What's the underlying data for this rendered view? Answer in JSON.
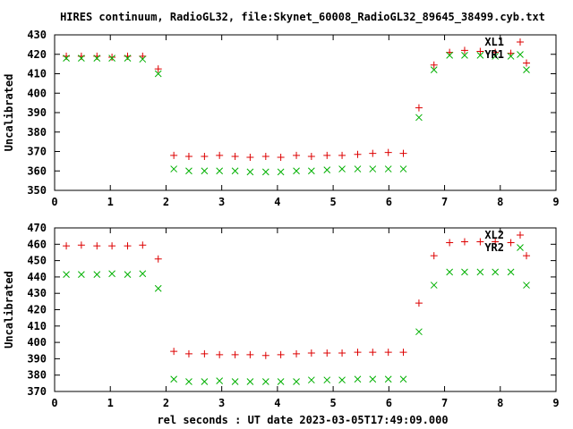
{
  "title": "HIRES continuum, RadioGL32, file:Skynet_60008_RadioGL32_89645_38499.cyb.txt",
  "xlabel": "rel seconds : UT date 2023-03-05T17:49:09.000",
  "chart_data": [
    {
      "type": "scatter",
      "ylabel": "Uncalibrated",
      "xlim": [
        0,
        9
      ],
      "ylim": [
        350,
        430
      ],
      "x_ticks": [
        0,
        1,
        2,
        3,
        4,
        5,
        6,
        7,
        8,
        9
      ],
      "y_ticks": [
        350,
        360,
        370,
        380,
        390,
        400,
        410,
        420,
        430
      ],
      "legend_position": "top-right",
      "grid": false,
      "series": [
        {
          "name": "XL1",
          "marker": "plus",
          "color": "#dd0000",
          "x": [
            0.21,
            0.48,
            0.76,
            1.03,
            1.31,
            1.58,
            1.86,
            2.14,
            2.41,
            2.69,
            2.96,
            3.24,
            3.51,
            3.79,
            4.06,
            4.34,
            4.61,
            4.89,
            5.16,
            5.44,
            5.71,
            5.99,
            6.26,
            6.54,
            6.81,
            7.09,
            7.36,
            7.64,
            7.91,
            8.19,
            8.47
          ],
          "y": [
            419,
            419,
            419,
            418.5,
            419,
            419,
            412.5,
            368,
            367.5,
            367.5,
            368,
            367.5,
            367,
            367.5,
            367,
            368,
            367.5,
            368,
            368,
            368.5,
            369,
            369.5,
            369,
            392.5,
            414.5,
            421,
            422,
            421.5,
            421,
            420.5,
            415.5
          ]
        },
        {
          "name": "YR1",
          "marker": "x",
          "color": "#00b000",
          "x": [
            0.21,
            0.48,
            0.76,
            1.03,
            1.31,
            1.58,
            1.86,
            2.14,
            2.41,
            2.69,
            2.96,
            3.24,
            3.51,
            3.79,
            4.06,
            4.34,
            4.61,
            4.89,
            5.16,
            5.44,
            5.71,
            5.99,
            6.26,
            6.54,
            6.81,
            7.09,
            7.36,
            7.64,
            7.91,
            8.19,
            8.47
          ],
          "y": [
            418,
            418,
            418,
            418,
            418,
            417.5,
            410,
            361,
            360,
            360,
            360,
            360,
            359.5,
            359.5,
            359.5,
            360,
            360,
            360.5,
            361,
            361,
            361,
            361,
            361,
            387.5,
            412,
            419.5,
            419.5,
            419.5,
            419,
            419,
            412
          ]
        }
      ]
    },
    {
      "type": "scatter",
      "ylabel": "Uncalibrated",
      "xlim": [
        0,
        9
      ],
      "ylim": [
        370,
        470
      ],
      "x_ticks": [
        0,
        1,
        2,
        3,
        4,
        5,
        6,
        7,
        8,
        9
      ],
      "y_ticks": [
        370,
        380,
        390,
        400,
        410,
        420,
        430,
        440,
        450,
        460,
        470
      ],
      "legend_position": "top-right",
      "grid": false,
      "series": [
        {
          "name": "XL2",
          "marker": "plus",
          "color": "#dd0000",
          "x": [
            0.21,
            0.48,
            0.76,
            1.03,
            1.31,
            1.58,
            1.86,
            2.14,
            2.41,
            2.69,
            2.96,
            3.24,
            3.51,
            3.79,
            4.06,
            4.34,
            4.61,
            4.89,
            5.16,
            5.44,
            5.71,
            5.99,
            6.26,
            6.54,
            6.81,
            7.09,
            7.36,
            7.64,
            7.91,
            8.19,
            8.47
          ],
          "y": [
            459,
            459.5,
            459,
            459,
            459,
            459.5,
            451,
            394.5,
            393,
            393,
            392.5,
            392.5,
            392.5,
            392,
            392.5,
            393,
            393.5,
            393.5,
            393.5,
            394,
            394,
            394,
            394,
            424,
            453,
            461,
            461.5,
            461.5,
            461.5,
            461,
            453
          ]
        },
        {
          "name": "YR2",
          "marker": "x",
          "color": "#00b000",
          "x": [
            0.21,
            0.48,
            0.76,
            1.03,
            1.31,
            1.58,
            1.86,
            2.14,
            2.41,
            2.69,
            2.96,
            3.24,
            3.51,
            3.79,
            4.06,
            4.34,
            4.61,
            4.89,
            5.16,
            5.44,
            5.71,
            5.99,
            6.26,
            6.54,
            6.81,
            7.09,
            7.36,
            7.64,
            7.91,
            8.19,
            8.47
          ],
          "y": [
            441.5,
            441.5,
            441.5,
            442,
            441.5,
            442,
            433,
            377.5,
            376,
            376,
            376.5,
            376,
            376,
            376,
            376,
            376,
            377,
            377,
            377,
            377.5,
            377.5,
            377.5,
            377.5,
            406.5,
            435,
            443,
            443,
            443,
            443,
            443,
            435
          ]
        }
      ]
    }
  ]
}
